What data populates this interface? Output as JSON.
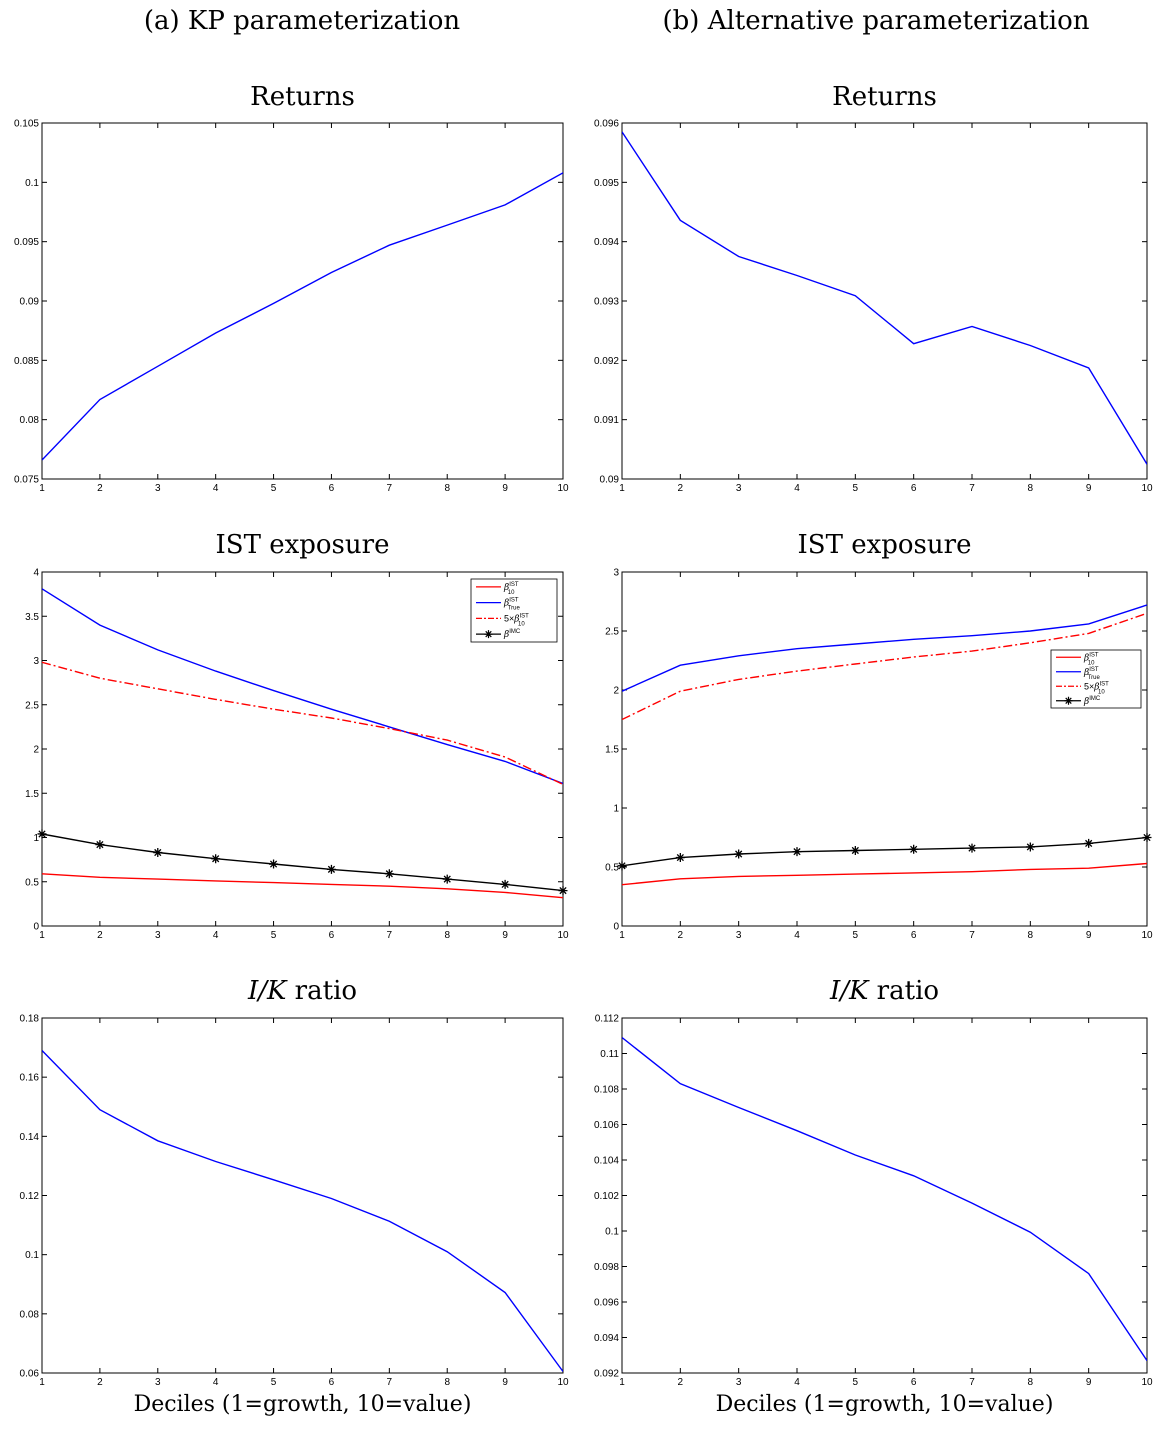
{
  "figure": {
    "columns": [
      {
        "title": "(a) KP parameterization"
      },
      {
        "title": "(b) Alternative parameterization"
      }
    ],
    "xcaption": "Deciles (1=growth, 10=value)"
  },
  "panel_titles": {
    "returns": "Returns",
    "ist": "IST exposure",
    "ik_italic": "I/K",
    "ik_suffix": " ratio"
  },
  "legend_labels": {
    "b10": {
      "sym": "β",
      "sup": "IST",
      "sub": "10"
    },
    "btrue": {
      "sym": "β",
      "sup": "IST",
      "sub": "True"
    },
    "five": {
      "prefix": "5×",
      "sym": "β",
      "sup": "IST",
      "sub": "10"
    },
    "imc": {
      "sym": "β",
      "sup": "IMC"
    }
  },
  "colors": {
    "blue": "#0000ff",
    "red": "#ff0000",
    "black": "#000000"
  },
  "chart_data": [
    {
      "id": "returns_a",
      "type": "line",
      "title": "Returns",
      "x": [
        1,
        2,
        3,
        4,
        5,
        6,
        7,
        8,
        9,
        10
      ],
      "xlim": [
        1,
        10
      ],
      "ylim": [
        0.075,
        0.105
      ],
      "yticks": [
        "0.075",
        "0.08",
        "0.085",
        "0.09",
        "0.095",
        "0.1",
        "0.105"
      ],
      "grid": false,
      "series": [
        {
          "key": "ret",
          "color": "#0000ff",
          "style": "solid",
          "values": [
            0.0766,
            0.0817,
            0.0845,
            0.0873,
            0.0898,
            0.0924,
            0.0947,
            0.0964,
            0.0981,
            0.1008
          ]
        }
      ]
    },
    {
      "id": "returns_b",
      "type": "line",
      "title": "Returns",
      "x": [
        1,
        2,
        3,
        4,
        5,
        6,
        7,
        8,
        9,
        10
      ],
      "xlim": [
        1,
        10
      ],
      "ylim": [
        0.09,
        0.096
      ],
      "yticks": [
        "0.09",
        "0.091",
        "0.092",
        "0.093",
        "0.094",
        "0.095",
        "0.096"
      ],
      "grid": false,
      "series": [
        {
          "key": "ret",
          "color": "#0000ff",
          "style": "solid",
          "values": [
            0.09585,
            0.09436,
            0.09375,
            0.09343,
            0.09309,
            0.09228,
            0.09257,
            0.09225,
            0.09187,
            0.09025
          ]
        }
      ]
    },
    {
      "id": "ist_a",
      "type": "line",
      "title": "IST exposure",
      "x": [
        1,
        2,
        3,
        4,
        5,
        6,
        7,
        8,
        9,
        10
      ],
      "xlim": [
        1,
        10
      ],
      "ylim": [
        0,
        4
      ],
      "yticks": [
        "0",
        "0.5",
        "1",
        "1.5",
        "2",
        "2.5",
        "3",
        "3.5",
        "4"
      ],
      "grid": false,
      "legend": "top-right",
      "series": [
        {
          "key": "b10",
          "color": "#ff0000",
          "style": "solid",
          "values": [
            0.59,
            0.55,
            0.53,
            0.51,
            0.49,
            0.47,
            0.45,
            0.42,
            0.38,
            0.32
          ]
        },
        {
          "key": "btrue",
          "color": "#0000ff",
          "style": "solid",
          "values": [
            3.81,
            3.4,
            3.12,
            2.88,
            2.66,
            2.45,
            2.25,
            2.05,
            1.86,
            1.61
          ]
        },
        {
          "key": "five",
          "color": "#ff0000",
          "style": "dashdot",
          "values": [
            2.98,
            2.8,
            2.68,
            2.56,
            2.45,
            2.35,
            2.23,
            2.1,
            1.91,
            1.6
          ]
        },
        {
          "key": "imc",
          "color": "#000000",
          "style": "solid-star",
          "values": [
            1.04,
            0.92,
            0.83,
            0.76,
            0.7,
            0.64,
            0.59,
            0.53,
            0.47,
            0.4
          ]
        }
      ]
    },
    {
      "id": "ist_b",
      "type": "line",
      "title": "IST exposure",
      "x": [
        1,
        2,
        3,
        4,
        5,
        6,
        7,
        8,
        9,
        10
      ],
      "xlim": [
        1,
        10
      ],
      "ylim": [
        0,
        3
      ],
      "yticks": [
        "0",
        "0.5",
        "1",
        "1.5",
        "2",
        "2.5",
        "3"
      ],
      "grid": false,
      "legend": "right",
      "series": [
        {
          "key": "b10",
          "color": "#ff0000",
          "style": "solid",
          "values": [
            0.35,
            0.4,
            0.42,
            0.43,
            0.44,
            0.45,
            0.46,
            0.48,
            0.49,
            0.53
          ]
        },
        {
          "key": "btrue",
          "color": "#0000ff",
          "style": "solid",
          "values": [
            1.99,
            2.21,
            2.29,
            2.35,
            2.39,
            2.43,
            2.46,
            2.5,
            2.56,
            2.72
          ]
        },
        {
          "key": "five",
          "color": "#ff0000",
          "style": "dashdot",
          "values": [
            1.75,
            1.99,
            2.09,
            2.16,
            2.22,
            2.28,
            2.33,
            2.4,
            2.48,
            2.65
          ]
        },
        {
          "key": "imc",
          "color": "#000000",
          "style": "solid-star",
          "values": [
            0.51,
            0.58,
            0.61,
            0.63,
            0.64,
            0.65,
            0.66,
            0.67,
            0.7,
            0.75
          ]
        }
      ]
    },
    {
      "id": "ik_a",
      "type": "line",
      "title": "I/K ratio",
      "x": [
        1,
        2,
        3,
        4,
        5,
        6,
        7,
        8,
        9,
        10
      ],
      "xlim": [
        1,
        10
      ],
      "ylim": [
        0.06,
        0.18
      ],
      "yticks": [
        "0.06",
        "0.08",
        "0.1",
        "0.12",
        "0.14",
        "0.16",
        "0.18"
      ],
      "grid": false,
      "series": [
        {
          "key": "ik",
          "color": "#0000ff",
          "style": "solid",
          "values": [
            0.169,
            0.149,
            0.1385,
            0.1315,
            0.1253,
            0.119,
            0.1113,
            0.101,
            0.0872,
            0.0605
          ]
        }
      ]
    },
    {
      "id": "ik_b",
      "type": "line",
      "title": "I/K ratio",
      "x": [
        1,
        2,
        3,
        4,
        5,
        6,
        7,
        8,
        9,
        10
      ],
      "xlim": [
        1,
        10
      ],
      "ylim": [
        0.092,
        0.112
      ],
      "yticks": [
        "0.092",
        "0.094",
        "0.096",
        "0.098",
        "0.1",
        "0.102",
        "0.104",
        "0.106",
        "0.108",
        "0.11",
        "0.112"
      ],
      "grid": false,
      "series": [
        {
          "key": "ik",
          "color": "#0000ff",
          "style": "solid",
          "values": [
            0.1109,
            0.1083,
            0.10696,
            0.10565,
            0.10428,
            0.10311,
            0.10157,
            0.09993,
            0.0976,
            0.0927
          ]
        }
      ]
    }
  ]
}
